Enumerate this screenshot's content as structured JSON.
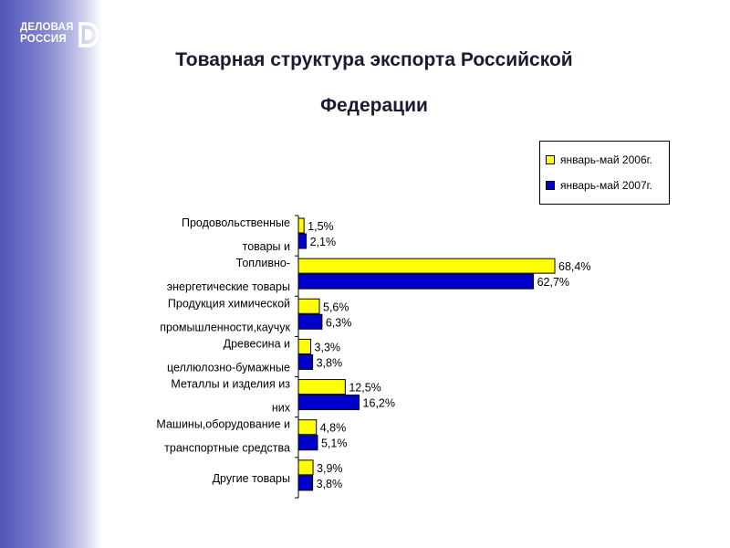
{
  "logo": {
    "line1": "ДЕЛОВАЯ",
    "line2": "РОССИЯ"
  },
  "title_line1": "Товарная структура экспорта Российской",
  "title_line2": "Федерации",
  "colors": {
    "series_2006": "#ffff00",
    "series_2007": "#0000cc",
    "side_band": "#5155b8"
  },
  "chart_data": {
    "type": "bar",
    "orientation": "horizontal",
    "categories": [
      [
        "Продовольственные",
        "товары и"
      ],
      [
        "Топливно-",
        "энергетические товары"
      ],
      [
        "Продукция химической",
        "промышленности,каучук"
      ],
      [
        "Древесина и",
        "целлюлозно-бумажные"
      ],
      [
        "Металлы и изделия из",
        "них"
      ],
      [
        "Машины,оборудование и",
        "транспортные средства"
      ],
      [
        "Другие товары"
      ]
    ],
    "series": [
      {
        "name": "январь-май 2006г.",
        "values": [
          1.5,
          68.4,
          5.6,
          3.3,
          12.5,
          4.8,
          3.9
        ],
        "labels": [
          "1,5%",
          "68,4%",
          "5,6%",
          "3,3%",
          "12,5%",
          "4,8%",
          "3,9%"
        ]
      },
      {
        "name": "январь-май 2007г.",
        "values": [
          2.1,
          62.7,
          6.3,
          3.8,
          16.2,
          5.1,
          3.8
        ],
        "labels": [
          "2,1%",
          "62,7%",
          "6,3%",
          "3,8%",
          "16,2%",
          "5,1%",
          "3,8%"
        ]
      }
    ],
    "xlim": [
      0,
      75
    ],
    "legend_position": "top-right",
    "grid": false
  }
}
